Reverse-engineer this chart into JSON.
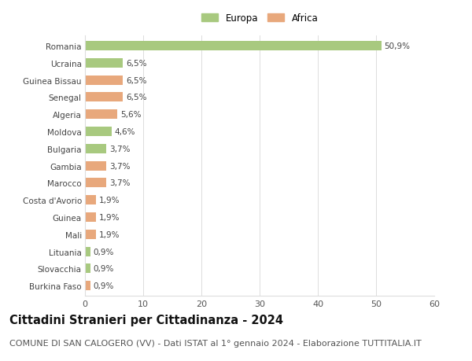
{
  "countries": [
    "Romania",
    "Ucraina",
    "Guinea Bissau",
    "Senegal",
    "Algeria",
    "Moldova",
    "Bulgaria",
    "Gambia",
    "Marocco",
    "Costa d'Avorio",
    "Guinea",
    "Mali",
    "Lituania",
    "Slovacchia",
    "Burkina Faso"
  ],
  "values": [
    50.9,
    6.5,
    6.5,
    6.5,
    5.6,
    4.6,
    3.7,
    3.7,
    3.7,
    1.9,
    1.9,
    1.9,
    0.9,
    0.9,
    0.9
  ],
  "labels": [
    "50,9%",
    "6,5%",
    "6,5%",
    "6,5%",
    "5,6%",
    "4,6%",
    "3,7%",
    "3,7%",
    "3,7%",
    "1,9%",
    "1,9%",
    "1,9%",
    "0,9%",
    "0,9%",
    "0,9%"
  ],
  "colors": [
    "#a8c97f",
    "#a8c97f",
    "#e8a87c",
    "#e8a87c",
    "#e8a87c",
    "#a8c97f",
    "#a8c97f",
    "#e8a87c",
    "#e8a87c",
    "#e8a87c",
    "#e8a87c",
    "#e8a87c",
    "#a8c97f",
    "#a8c97f",
    "#e8a87c"
  ],
  "europa_color": "#a8c97f",
  "africa_color": "#e8a87c",
  "xlim": [
    0,
    60
  ],
  "xticks": [
    0,
    10,
    20,
    30,
    40,
    50,
    60
  ],
  "title": "Cittadini Stranieri per Cittadinanza - 2024",
  "subtitle": "COMUNE DI SAN CALOGERO (VV) - Dati ISTAT al 1° gennaio 2024 - Elaborazione TUTTITALIA.IT",
  "title_fontsize": 10.5,
  "subtitle_fontsize": 8,
  "background_color": "#ffffff",
  "grid_color": "#dddddd",
  "bar_height": 0.55
}
